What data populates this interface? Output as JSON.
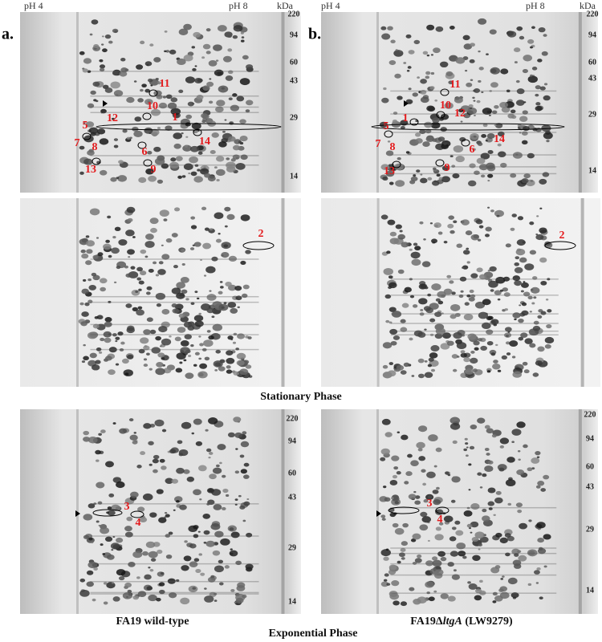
{
  "panels": [
    {
      "letter": "a.",
      "ph_low": "pH 4",
      "ph_high": "pH 8",
      "unit": "kDa",
      "top_mw": [
        "220",
        "94",
        "60",
        "43",
        "29",
        "14"
      ],
      "top_spots": [
        "11",
        "10",
        "12",
        "1",
        "5",
        "14",
        "7",
        "8",
        "6",
        "13",
        "9"
      ],
      "middle_spots": [
        "2"
      ],
      "bottom_mw": [
        "220",
        "94",
        "60",
        "43",
        "29",
        "14"
      ],
      "bottom_spots": [
        "3",
        "4"
      ],
      "caption": [
        "FA19 wild-type"
      ]
    },
    {
      "letter": "b.",
      "ph_low": "pH 4",
      "ph_high": "pH 8",
      "unit": "kDa",
      "top_mw": [
        "220",
        "94",
        "60",
        "43",
        "29",
        "14"
      ],
      "top_spots": [
        "11",
        "10",
        "12",
        "1",
        "5",
        "14",
        "7",
        "8",
        "6",
        "13",
        "9"
      ],
      "middle_spots": [
        "2"
      ],
      "bottom_mw": [
        "220",
        "94",
        "60",
        "43",
        "29",
        "14"
      ],
      "bottom_spots": [
        "3",
        "4"
      ],
      "caption": [
        "FA19Δ",
        "ltgA",
        " (LW9279)"
      ]
    }
  ],
  "stationary_label": "Stationary Phase",
  "exponential_label": "Exponential Phase"
}
